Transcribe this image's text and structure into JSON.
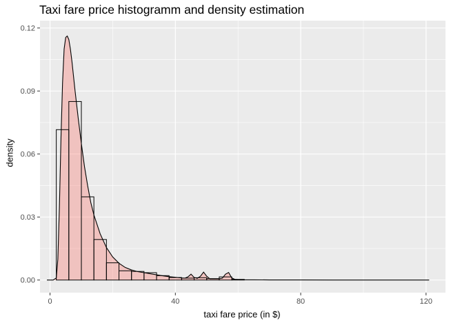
{
  "chart_data": {
    "type": "bar",
    "title": "Taxi fare price histogramm and density estimation",
    "xlabel": "taxi fare price (in $)",
    "ylabel": "density",
    "xlim": [
      -3.2,
      126.2
    ],
    "ylim": [
      -0.006,
      0.1235
    ],
    "x_ticks": [
      0,
      40,
      80,
      120
    ],
    "x_tick_labels": [
      "0",
      "40",
      "80",
      "120"
    ],
    "y_ticks": [
      0,
      0.03,
      0.06,
      0.09,
      0.12
    ],
    "y_tick_labels": [
      "0.00",
      "0.03",
      "0.06",
      "0.09",
      "0.12"
    ],
    "grid": true,
    "histogram": {
      "bin_width": 4,
      "bins": [
        {
          "x0": 2,
          "x1": 6,
          "density": 0.0716
        },
        {
          "x0": 6,
          "x1": 10,
          "density": 0.085
        },
        {
          "x0": 10,
          "x1": 14,
          "density": 0.0396
        },
        {
          "x0": 14,
          "x1": 18,
          "density": 0.0193
        },
        {
          "x0": 18,
          "x1": 22,
          "density": 0.0082
        },
        {
          "x0": 22,
          "x1": 26,
          "density": 0.0044
        },
        {
          "x0": 26,
          "x1": 30,
          "density": 0.0041
        },
        {
          "x0": 30,
          "x1": 34,
          "density": 0.0035
        },
        {
          "x0": 34,
          "x1": 38,
          "density": 0.0021
        },
        {
          "x0": 38,
          "x1": 42,
          "density": 0.0012
        },
        {
          "x0": 42,
          "x1": 46,
          "density": 0.0009
        },
        {
          "x0": 46,
          "x1": 50,
          "density": 0.0011
        },
        {
          "x0": 50,
          "x1": 54,
          "density": 0.0007
        },
        {
          "x0": 54,
          "x1": 58,
          "density": 0.0015
        },
        {
          "x0": 58,
          "x1": 62,
          "density": 0.0003
        }
      ],
      "outline_color": "#000000",
      "fill": "none"
    },
    "density_curve": {
      "fill_color": "#f8766d",
      "fill_opacity": 0.35,
      "line_color": "#000000",
      "x": [
        -1,
        0,
        1,
        2,
        2.5,
        3,
        3.5,
        4,
        4.5,
        5,
        5.5,
        6,
        6.5,
        7,
        7.5,
        8,
        9,
        10,
        11,
        12,
        13,
        14,
        16,
        18,
        20,
        22,
        24,
        26,
        28,
        30,
        32,
        34,
        36,
        38,
        40,
        42,
        43,
        44,
        45,
        46,
        47,
        48,
        49,
        50,
        51,
        52,
        54,
        55,
        56,
        57,
        58,
        59,
        60,
        62,
        65,
        70,
        80,
        90,
        100,
        110,
        121
      ],
      "y": [
        0,
        0,
        0,
        0.001,
        0.01,
        0.035,
        0.068,
        0.094,
        0.11,
        0.1155,
        0.1162,
        0.1145,
        0.11,
        0.104,
        0.097,
        0.09,
        0.077,
        0.065,
        0.054,
        0.045,
        0.037,
        0.031,
        0.022,
        0.0155,
        0.011,
        0.008,
        0.006,
        0.0048,
        0.004,
        0.0035,
        0.003,
        0.0025,
        0.002,
        0.0016,
        0.0013,
        0.001,
        0.0009,
        0.0015,
        0.0028,
        0.0012,
        0.0008,
        0.0018,
        0.0038,
        0.0018,
        0.0006,
        0.0006,
        0.0006,
        0.0009,
        0.0028,
        0.0036,
        0.001,
        0.0003,
        0.0002,
        0.0001,
        0.0001,
        5e-05,
        3e-05,
        2e-05,
        1e-05,
        1e-05,
        0
      ]
    }
  }
}
